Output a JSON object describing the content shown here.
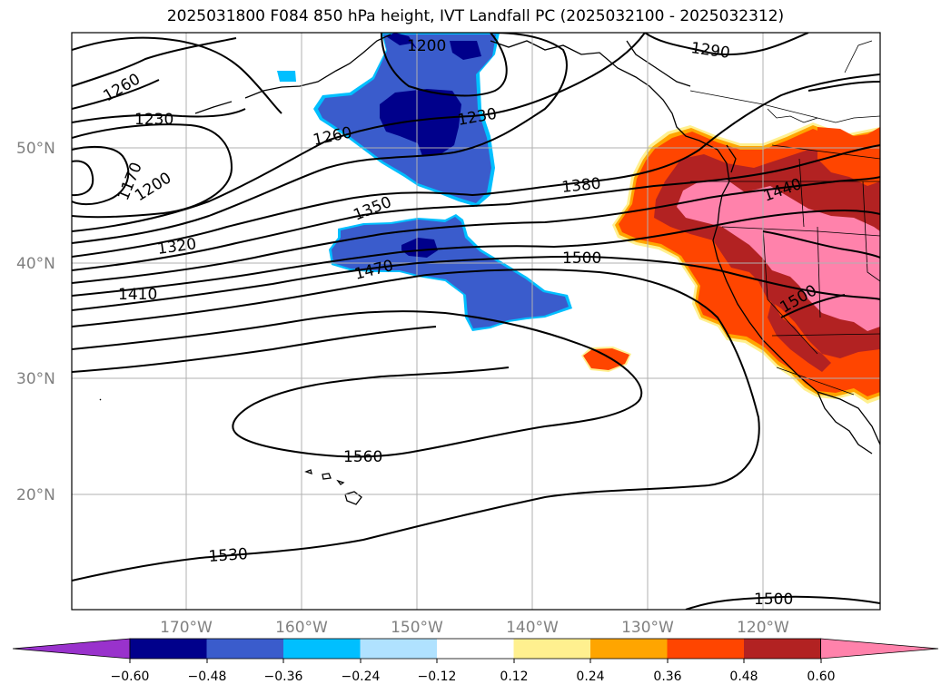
{
  "title": "2025031800 F084 850 hPa height, IVT Landfall PC (2025032100 - 2025032312)",
  "lat_labels": [
    "50°N",
    "40°N",
    "30°N",
    "20°N"
  ],
  "lon_labels": [
    "170°W",
    "160°W",
    "150°W",
    "140°W",
    "130°W",
    "120°W"
  ],
  "contour_labels": [
    "1260",
    "1230",
    "1200",
    "1290",
    "1230",
    "1260",
    "1170",
    "1200",
    "1380",
    "1440",
    "1350",
    "1320",
    "1470",
    "1500",
    "1410",
    "1500",
    "1560",
    "1530",
    "1500"
  ],
  "colorbar": {
    "colors": [
      "#9932cc",
      "#00008b",
      "#3a5ccc",
      "#00bfff",
      "#b0e2ff",
      "#ffffff",
      "#fff08f",
      "#ffa500",
      "#ff4500",
      "#b22222",
      "#ff82ab"
    ],
    "tick_labels": [
      "−0.60",
      "−0.48",
      "−0.36",
      "−0.24",
      "−0.12",
      "0.12",
      "0.24",
      "0.36",
      "0.48",
      "0.60"
    ]
  }
}
